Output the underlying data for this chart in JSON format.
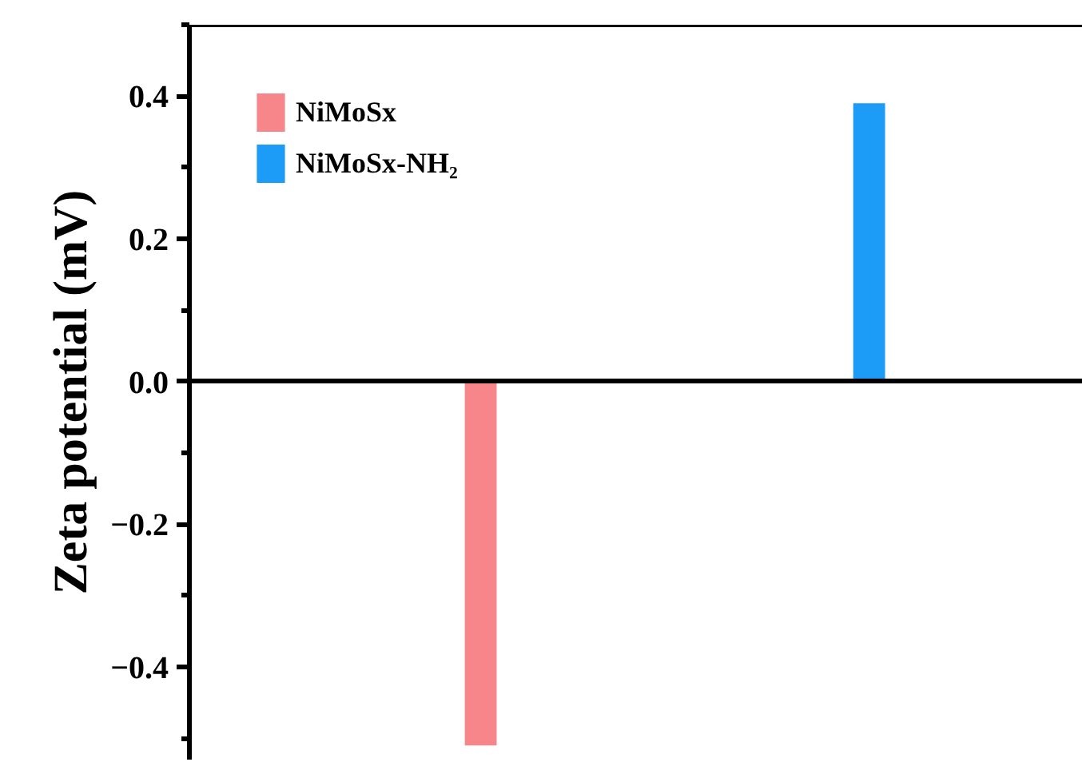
{
  "chart_data": {
    "type": "bar",
    "ylabel": "Zeta potential (mV)",
    "categories": [
      null,
      null
    ],
    "series": [
      {
        "name": "NiMoSx",
        "color": "#f7868a",
        "values": [
          -0.51,
          null
        ]
      },
      {
        "name": "NiMoSx-NH₂",
        "color": "#1c9cf6",
        "values": [
          null,
          0.39
        ]
      }
    ],
    "ylim": [
      -0.53,
      0.5
    ],
    "yticks": [
      {
        "value": -0.4,
        "label": "−0.4"
      },
      {
        "value": -0.2,
        "label": "−0.2"
      },
      {
        "value": 0.0,
        "label": "0.0"
      },
      {
        "value": 0.2,
        "label": "0.2"
      },
      {
        "value": 0.4,
        "label": "0.4"
      }
    ],
    "legend": "top left"
  }
}
